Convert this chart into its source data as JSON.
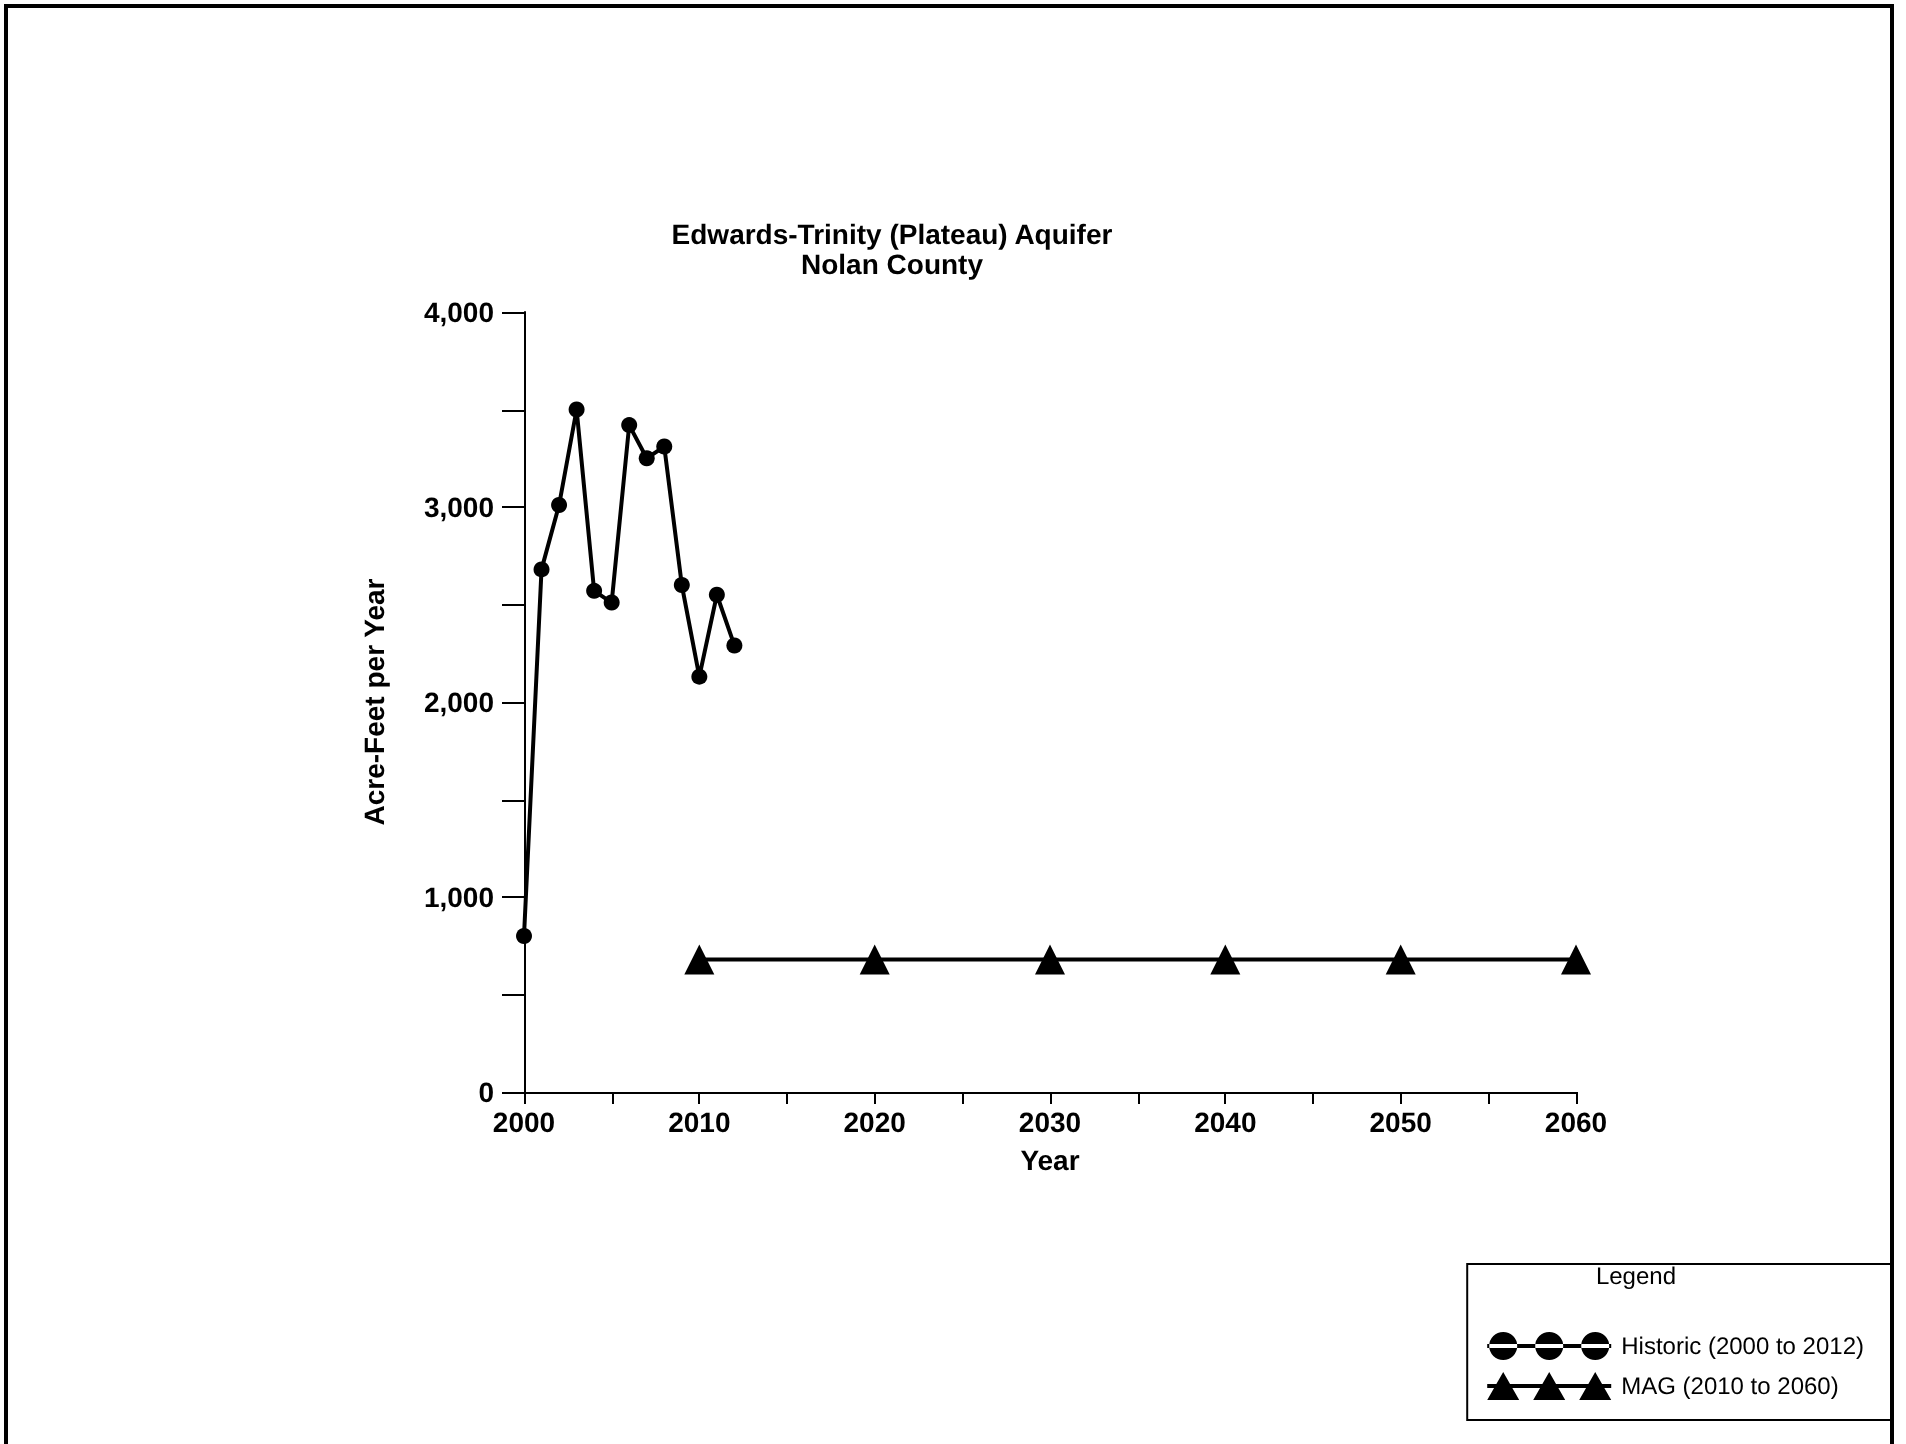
{
  "chart_data": {
    "type": "line",
    "title": "Edwards-Trinity (Plateau) Aquifer",
    "subtitle": "Nolan County",
    "xlabel": "Year",
    "ylabel": "Acre-Feet per Year",
    "legend_title": "Legend",
    "xlim": [
      2000,
      2060
    ],
    "xticks": [
      2000,
      {
        "value": 2005,
        "label": null
      },
      2010,
      {
        "value": 2015,
        "label": null
      },
      2020,
      {
        "value": 2025,
        "label": null
      },
      2030,
      {
        "value": 2035,
        "label": null
      },
      2040,
      {
        "value": 2045,
        "label": null
      },
      2050,
      {
        "value": 2055,
        "label": null
      },
      2060
    ],
    "ylim": [
      0,
      4000
    ],
    "yticks": [
      {
        "value": 0,
        "label": "0"
      },
      {
        "value": 500,
        "label": null
      },
      {
        "value": 1000,
        "label": "1,000"
      },
      {
        "value": 1500,
        "label": null
      },
      {
        "value": 2000,
        "label": "2,000"
      },
      {
        "value": 2500,
        "label": null
      },
      {
        "value": 3000,
        "label": "3,000"
      },
      {
        "value": 3500,
        "label": null
      },
      {
        "value": 4000,
        "label": "4,000"
      }
    ],
    "grid": false,
    "legend": "bottom right",
    "line_style": "solid",
    "series": [
      {
        "name": "Historic (2000 to 2012)",
        "color": "#000000",
        "marker": "circle",
        "x": [
          2000,
          2001,
          2002,
          2003,
          2004,
          2005,
          2006,
          2007,
          2008,
          2009,
          2010,
          2011,
          2012
        ],
        "values": [
          800,
          2680,
          3010,
          3500,
          2570,
          2510,
          3420,
          3250,
          3310,
          2600,
          2130,
          2550,
          2290
        ]
      },
      {
        "name": "MAG (2010 to 2060)",
        "color": "#000000",
        "marker": "triangle",
        "x": [
          2010,
          2020,
          2030,
          2040,
          2050,
          2060
        ],
        "values": [
          680,
          680,
          680,
          680,
          680,
          680
        ]
      }
    ]
  }
}
